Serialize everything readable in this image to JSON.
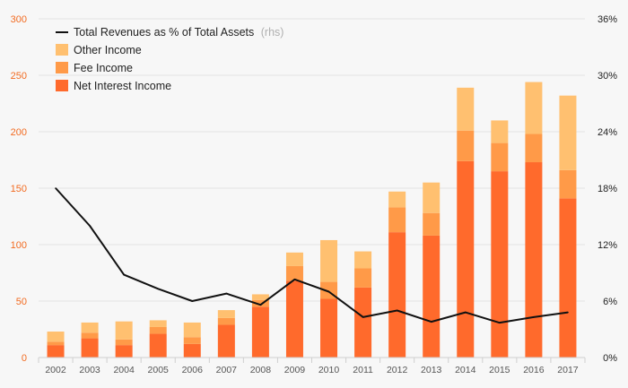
{
  "chart_data": {
    "type": "bar",
    "stacked": true,
    "categories": [
      "2002",
      "2003",
      "2004",
      "2005",
      "2006",
      "2007",
      "2008",
      "2009",
      "2010",
      "2011",
      "2012",
      "2013",
      "2014",
      "2015",
      "2016",
      "2017"
    ],
    "series": [
      {
        "name": "Net Interest Income",
        "color": "#ff6a2c",
        "values": [
          11,
          17,
          11,
          21,
          12,
          29,
          45,
          68,
          52,
          62,
          111,
          108,
          174,
          165,
          173,
          141
        ]
      },
      {
        "name": "Fee Income",
        "color": "#ff9a48",
        "values": [
          3,
          5,
          5,
          6,
          6,
          6,
          6,
          13,
          15,
          17,
          22,
          20,
          27,
          25,
          25,
          25
        ]
      },
      {
        "name": "Other Income",
        "color": "#ffc070",
        "values": [
          9,
          9,
          16,
          6,
          13,
          7,
          5,
          12,
          37,
          15,
          14,
          27,
          38,
          20,
          46,
          66
        ]
      }
    ],
    "line": {
      "name": "Total Revenues as % of Total Assets",
      "name_suffix": "(rhs)",
      "axis": "right",
      "color": "#111111",
      "values": [
        18.0,
        14.0,
        8.8,
        7.3,
        6.0,
        6.8,
        5.6,
        8.3,
        7.0,
        4.3,
        5.0,
        3.8,
        4.8,
        3.7,
        4.3,
        4.8
      ]
    },
    "y_left": {
      "min": 0,
      "max": 300,
      "ticks": [
        0,
        50,
        100,
        150,
        200,
        250,
        300
      ]
    },
    "y_right": {
      "min": 0,
      "max": 36,
      "ticks": [
        "0%",
        "6%",
        "12%",
        "18%",
        "24%",
        "30%",
        "36%"
      ]
    },
    "grid": true,
    "legend": {
      "placement": "top-left",
      "entries": [
        "Total Revenues as % of Total Assets",
        "Other Income",
        "Fee Income",
        "Net Interest Income"
      ]
    }
  }
}
